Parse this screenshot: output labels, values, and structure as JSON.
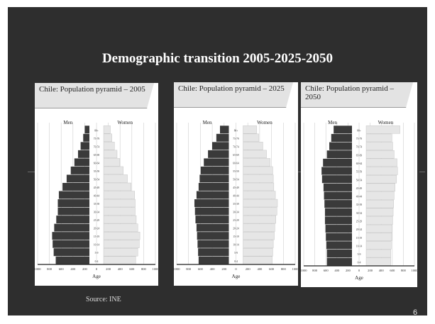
{
  "slide": {
    "title": "Demographic transition 2005-2025-2050",
    "source": "Source: INE",
    "page_number": "6"
  },
  "panels": [
    {
      "tab_label": "Chile: Population pyramid – 2005",
      "men_label": "Men",
      "women_label": "Women",
      "x_axis_label": "Age"
    },
    {
      "tab_label": "Chile: Population pyramid – 2025",
      "men_label": "Men",
      "women_label": "Women",
      "x_axis_label": "Age"
    },
    {
      "tab_label": "Chile: Population pyramid – 2050",
      "men_label": "Men",
      "women_label": "Women",
      "x_axis_label": "Age"
    }
  ],
  "chart_data": [
    {
      "type": "bar",
      "orientation": "horizontal-pyramid",
      "title": "Chile: Population pyramid – 2005",
      "categories": [
        "0-4",
        "5-9",
        "10-14",
        "15-19",
        "20-24",
        "25-29",
        "30-34",
        "35-39",
        "40-44",
        "45-49",
        "50-54",
        "55-59",
        "60-64",
        "65-69",
        "70-74",
        "75-79",
        "80+"
      ],
      "series": [
        {
          "name": "Men",
          "values": [
            650,
            690,
            710,
            720,
            680,
            640,
            610,
            610,
            590,
            520,
            440,
            360,
            290,
            220,
            170,
            120,
            90
          ],
          "color": "#3a3a3a"
        },
        {
          "name": "Women",
          "values": [
            620,
            660,
            690,
            700,
            660,
            630,
            610,
            610,
            600,
            530,
            460,
            380,
            310,
            260,
            210,
            160,
            130
          ],
          "color": "#e6e6e6"
        }
      ],
      "xlabel": "Age",
      "xticks": [
        "1000",
        "800",
        "600",
        "400",
        "200",
        "0",
        "200",
        "400",
        "600",
        "800",
        "1000"
      ],
      "xlim": [
        -1000,
        1000
      ]
    },
    {
      "type": "bar",
      "orientation": "horizontal-pyramid",
      "title": "Chile: Population pyramid – 2025",
      "categories": [
        "0-4",
        "5-9",
        "10-14",
        "15-19",
        "20-24",
        "25-29",
        "30-34",
        "35-39",
        "40-44",
        "45-49",
        "50-54",
        "55-59",
        "60-64",
        "65-69",
        "70-74",
        "75-79",
        "80+"
      ],
      "series": [
        {
          "name": "Men",
          "values": [
            580,
            590,
            600,
            610,
            620,
            640,
            650,
            660,
            620,
            580,
            560,
            540,
            480,
            400,
            320,
            240,
            170
          ],
          "color": "#3a3a3a"
        },
        {
          "name": "Women",
          "values": [
            560,
            570,
            580,
            600,
            610,
            630,
            650,
            660,
            620,
            590,
            580,
            570,
            520,
            450,
            380,
            300,
            260
          ],
          "color": "#e6e6e6"
        }
      ],
      "xlabel": "Age",
      "xticks": [
        "1000",
        "800",
        "600",
        "400",
        "200",
        "0",
        "200",
        "400",
        "600",
        "800",
        "1000"
      ],
      "xlim": [
        -1000,
        1000
      ]
    },
    {
      "type": "bar",
      "orientation": "horizontal-pyramid",
      "title": "Chile: Population pyramid – 2050",
      "categories": [
        "0-4",
        "5-9",
        "10-14",
        "15-19",
        "20-24",
        "25-29",
        "30-34",
        "35-39",
        "40-44",
        "45-49",
        "50-54",
        "55-59",
        "60-64",
        "65-69",
        "70-74",
        "75-79",
        "80+"
      ],
      "series": [
        {
          "name": "Men",
          "values": [
            520,
            520,
            530,
            540,
            550,
            560,
            560,
            570,
            580,
            590,
            620,
            630,
            600,
            520,
            470,
            430,
            380
          ],
          "color": "#3a3a3a"
        },
        {
          "name": "Women",
          "values": [
            510,
            510,
            520,
            530,
            540,
            550,
            560,
            570,
            580,
            600,
            630,
            650,
            640,
            580,
            550,
            520,
            700
          ],
          "color": "#e6e6e6"
        }
      ],
      "xlabel": "Age",
      "xticks": [
        "1000",
        "800",
        "600",
        "400",
        "200",
        "0",
        "200",
        "400",
        "600",
        "800",
        "1000"
      ],
      "xlim": [
        -1000,
        1000
      ]
    }
  ]
}
